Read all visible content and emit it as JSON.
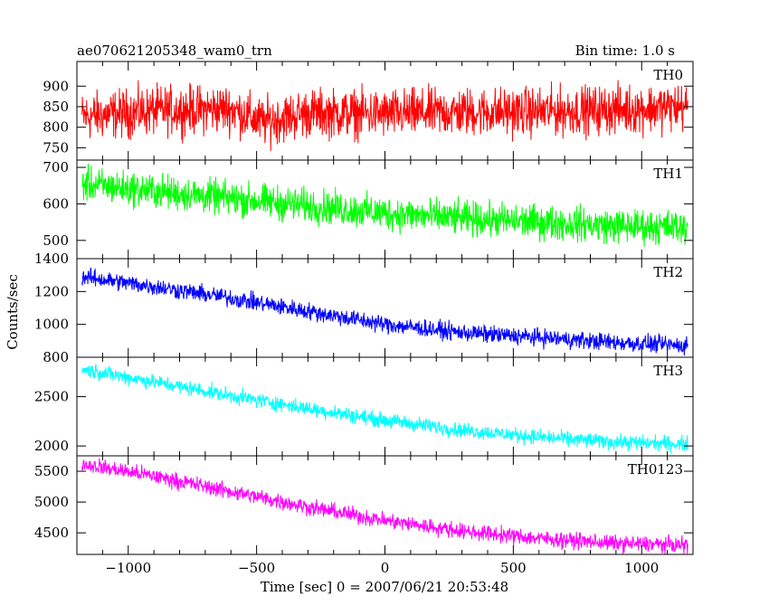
{
  "header": {
    "obs_id": "ae070621205348_wam0_trn",
    "bin_time": "Bin time: 1.0 s"
  },
  "chart_data": {
    "type": "line",
    "title": "ae070621205348_wam0_trn",
    "subtitle": "Bin time: 1.0 s",
    "xlabel": "Time [sec] 0 = 2007/06/21 20:53:48",
    "ylabel": "Counts/sec",
    "xlim": [
      -1200,
      1200
    ],
    "x_ticks": [
      -1000,
      -500,
      0,
      500,
      1000
    ],
    "x_tick_labels": [
      "−1000",
      "−500",
      "0",
      "500",
      "1000"
    ],
    "grid": false,
    "legend": "none",
    "panels": [
      {
        "name": "TH0",
        "color": "#ff0000",
        "ylim": [
          720,
          960
        ],
        "y_ticks": [
          750,
          800,
          850,
          900
        ],
        "x": [
          -1180,
          -900,
          -600,
          -480,
          -300,
          0,
          300,
          600,
          900,
          1180
        ],
        "values": [
          825,
          840,
          845,
          812,
          835,
          832,
          837,
          838,
          843,
          850
        ],
        "noise_amplitude": 50
      },
      {
        "name": "TH1",
        "color": "#00ff00",
        "ylim": [
          450,
          720
        ],
        "y_ticks": [
          500,
          600,
          700
        ],
        "x": [
          -1180,
          -900,
          -600,
          -300,
          0,
          300,
          600,
          900,
          1180
        ],
        "values": [
          655,
          635,
          615,
          595,
          575,
          560,
          550,
          540,
          535
        ],
        "noise_amplitude": 40
      },
      {
        "name": "TH2",
        "color": "#0000ff",
        "ylim": [
          800,
          1400
        ],
        "y_ticks": [
          800,
          1000,
          1200,
          1400
        ],
        "x": [
          -1180,
          -900,
          -600,
          -300,
          0,
          300,
          600,
          900,
          1180
        ],
        "values": [
          1290,
          1230,
          1160,
          1080,
          1000,
          950,
          920,
          890,
          870
        ],
        "noise_amplitude": 45
      },
      {
        "name": "TH3",
        "color": "#00ffff",
        "ylim": [
          1900,
          2900
        ],
        "y_ticks": [
          2000,
          2500
        ],
        "x": [
          -1180,
          -900,
          -600,
          -300,
          0,
          300,
          600,
          900,
          1180
        ],
        "values": [
          2780,
          2650,
          2510,
          2380,
          2260,
          2160,
          2090,
          2040,
          2020
        ],
        "noise_amplitude": 65
      },
      {
        "name": "TH0123",
        "color": "#ff00ff",
        "ylim": [
          4150,
          5750
        ],
        "y_ticks": [
          4500,
          5000,
          5500
        ],
        "x": [
          -1180,
          -900,
          -600,
          -300,
          0,
          300,
          600,
          900,
          1180
        ],
        "values": [
          5620,
          5420,
          5170,
          4920,
          4700,
          4530,
          4410,
          4330,
          4300
        ],
        "noise_amplitude": 110
      }
    ]
  }
}
